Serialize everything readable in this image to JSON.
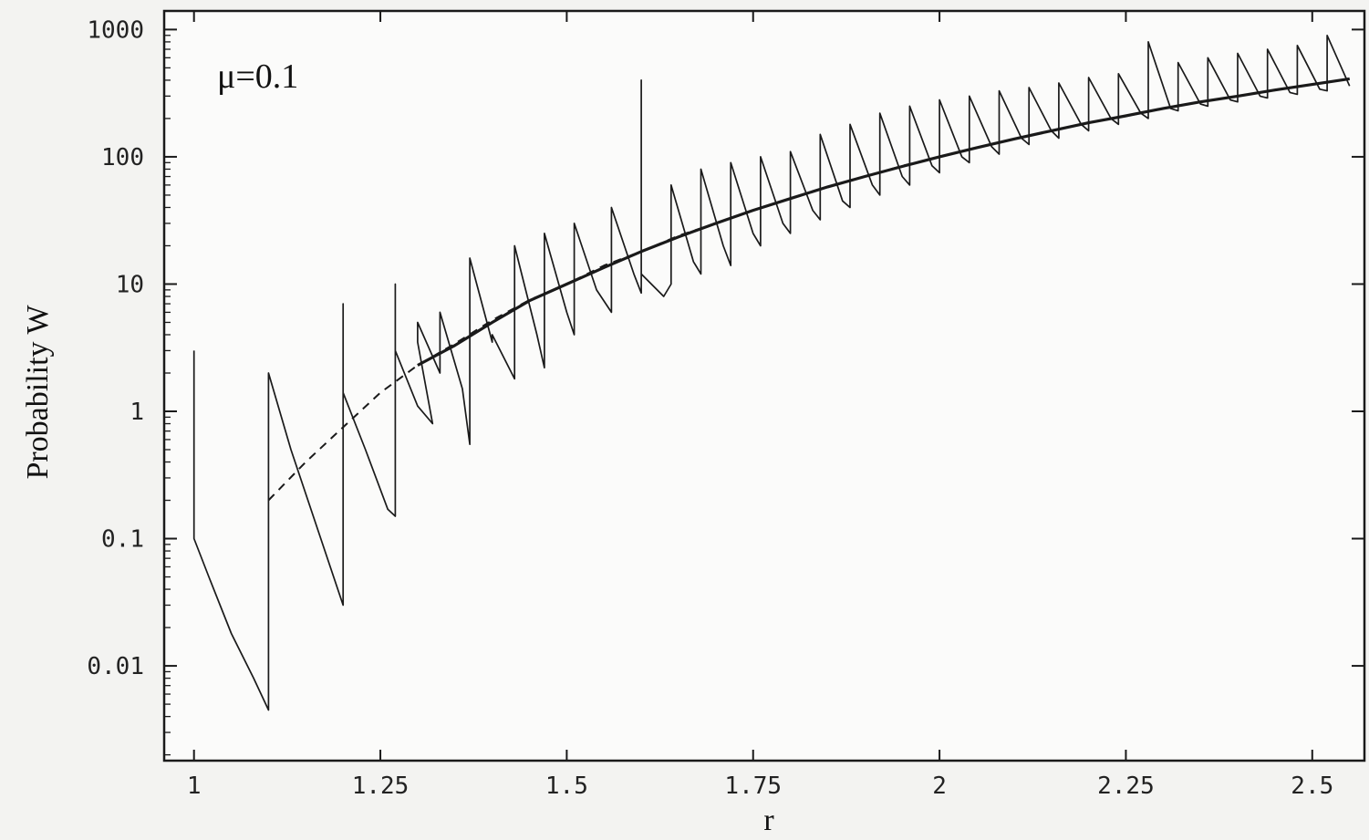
{
  "chart_data": {
    "type": "line",
    "title": "",
    "annotation": "μ=0.1",
    "xlabel": "r",
    "ylabel": "Probability W",
    "x_ticks": [
      {
        "value": 1,
        "label": "1"
      },
      {
        "value": 1.25,
        "label": "1.25"
      },
      {
        "value": 1.5,
        "label": "1.5"
      },
      {
        "value": 1.75,
        "label": "1.75"
      },
      {
        "value": 2,
        "label": "2"
      },
      {
        "value": 2.25,
        "label": "2.25"
      },
      {
        "value": 2.5,
        "label": "2.5"
      }
    ],
    "y_ticks": [
      {
        "value": 0.01,
        "label": "0.01"
      },
      {
        "value": 0.1,
        "label": "0.1"
      },
      {
        "value": 1,
        "label": "1"
      },
      {
        "value": 10,
        "label": "10"
      },
      {
        "value": 100,
        "label": "100"
      },
      {
        "value": 1000,
        "label": "1000"
      }
    ],
    "xlim": [
      0.96,
      2.57
    ],
    "ylim": [
      0.0018,
      1400
    ],
    "yscale": "log",
    "grid": false,
    "series": [
      {
        "style": "solid-oscillating",
        "color": "#1a1a1a",
        "points": [
          [
            1.0,
            3.0
          ],
          [
            1.0,
            0.1
          ],
          [
            1.02,
            0.05
          ],
          [
            1.05,
            0.018
          ],
          [
            1.08,
            0.008
          ],
          [
            1.1,
            0.0045
          ],
          [
            1.1,
            2.0
          ],
          [
            1.13,
            0.5
          ],
          [
            1.17,
            0.1
          ],
          [
            1.2,
            0.03
          ],
          [
            1.2,
            1.5
          ],
          [
            1.2,
            1.2
          ],
          [
            1.2,
            7.0
          ],
          [
            1.2,
            1.4
          ],
          [
            1.23,
            0.5
          ],
          [
            1.26,
            0.17
          ],
          [
            1.27,
            0.15
          ],
          [
            1.27,
            3.0
          ],
          [
            1.27,
            10.0
          ],
          [
            1.27,
            3.0
          ],
          [
            1.3,
            1.1
          ],
          [
            1.32,
            0.8
          ],
          [
            1.3,
            3.5
          ],
          [
            1.3,
            5.0
          ],
          [
            1.33,
            2.0
          ],
          [
            1.33,
            6.0
          ],
          [
            1.36,
            1.5
          ],
          [
            1.37,
            0.55
          ],
          [
            1.37,
            16.0
          ],
          [
            1.4,
            3.5
          ],
          [
            1.4,
            4.0
          ],
          [
            1.43,
            1.8
          ],
          [
            1.43,
            20.0
          ],
          [
            1.46,
            4.0
          ],
          [
            1.47,
            2.2
          ],
          [
            1.47,
            25.0
          ],
          [
            1.5,
            6.0
          ],
          [
            1.51,
            4.0
          ],
          [
            1.51,
            30.0
          ],
          [
            1.54,
            9.0
          ],
          [
            1.56,
            6.0
          ],
          [
            1.56,
            40.0
          ],
          [
            1.59,
            12.0
          ],
          [
            1.6,
            8.5
          ],
          [
            1.6,
            400.0
          ],
          [
            1.6,
            12.0
          ],
          [
            1.63,
            8.0
          ],
          [
            1.64,
            10.0
          ],
          [
            1.64,
            60.0
          ],
          [
            1.67,
            15.0
          ],
          [
            1.68,
            12.0
          ],
          [
            1.68,
            80.0
          ],
          [
            1.71,
            20.0
          ],
          [
            1.72,
            14.0
          ],
          [
            1.72,
            90.0
          ],
          [
            1.75,
            25.0
          ],
          [
            1.76,
            20.0
          ],
          [
            1.76,
            100.0
          ],
          [
            1.79,
            30.0
          ],
          [
            1.8,
            25.0
          ],
          [
            1.8,
            110.0
          ],
          [
            1.83,
            38.0
          ],
          [
            1.84,
            32.0
          ],
          [
            1.84,
            150.0
          ],
          [
            1.87,
            45.0
          ],
          [
            1.88,
            40.0
          ],
          [
            1.88,
            180.0
          ],
          [
            1.91,
            60.0
          ],
          [
            1.92,
            50.0
          ],
          [
            1.92,
            220.0
          ],
          [
            1.95,
            70.0
          ],
          [
            1.96,
            60.0
          ],
          [
            1.96,
            250.0
          ],
          [
            1.99,
            85.0
          ],
          [
            2.0,
            75.0
          ],
          [
            2.0,
            280.0
          ],
          [
            2.03,
            100.0
          ],
          [
            2.04,
            90.0
          ],
          [
            2.04,
            300.0
          ],
          [
            2.07,
            120.0
          ],
          [
            2.08,
            105.0
          ],
          [
            2.08,
            330.0
          ],
          [
            2.11,
            140.0
          ],
          [
            2.12,
            125.0
          ],
          [
            2.12,
            350.0
          ],
          [
            2.15,
            160.0
          ],
          [
            2.16,
            140.0
          ],
          [
            2.16,
            380.0
          ],
          [
            2.19,
            180.0
          ],
          [
            2.2,
            160.0
          ],
          [
            2.2,
            420.0
          ],
          [
            2.23,
            200.0
          ],
          [
            2.24,
            180.0
          ],
          [
            2.24,
            450.0
          ],
          [
            2.27,
            220.0
          ],
          [
            2.28,
            200.0
          ],
          [
            2.28,
            800.0
          ],
          [
            2.31,
            240.0
          ],
          [
            2.32,
            230.0
          ],
          [
            2.32,
            550.0
          ],
          [
            2.35,
            260.0
          ],
          [
            2.36,
            250.0
          ],
          [
            2.36,
            600.0
          ],
          [
            2.39,
            280.0
          ],
          [
            2.4,
            270.0
          ],
          [
            2.4,
            650.0
          ],
          [
            2.43,
            300.0
          ],
          [
            2.44,
            290.0
          ],
          [
            2.44,
            700.0
          ],
          [
            2.47,
            320.0
          ],
          [
            2.48,
            310.0
          ],
          [
            2.48,
            750.0
          ],
          [
            2.51,
            340.0
          ],
          [
            2.52,
            330.0
          ],
          [
            2.52,
            900.0
          ],
          [
            2.55,
            360.0
          ]
        ]
      },
      {
        "style": "dashed",
        "color": "#1a1a1a",
        "points": [
          [
            1.1,
            0.2
          ],
          [
            1.15,
            0.4
          ],
          [
            1.2,
            0.75
          ],
          [
            1.25,
            1.4
          ],
          [
            1.3,
            2.3
          ],
          [
            1.35,
            3.4
          ],
          [
            1.4,
            5.2
          ],
          [
            1.45,
            7.5
          ],
          [
            1.5,
            10.0
          ],
          [
            1.55,
            14.0
          ],
          [
            1.6,
            18.0
          ],
          [
            1.65,
            24.0
          ],
          [
            1.7,
            30.0
          ],
          [
            1.75,
            38.0
          ],
          [
            1.8,
            47.0
          ],
          [
            1.85,
            58.0
          ],
          [
            1.9,
            70.0
          ],
          [
            1.95,
            85.0
          ],
          [
            2.0,
            100.0
          ],
          [
            2.05,
            118.0
          ],
          [
            2.1,
            138.0
          ],
          [
            2.15,
            160.0
          ],
          [
            2.2,
            185.0
          ],
          [
            2.25,
            210.0
          ],
          [
            2.3,
            240.0
          ],
          [
            2.35,
            270.0
          ],
          [
            2.4,
            300.0
          ],
          [
            2.45,
            335.0
          ],
          [
            2.5,
            370.0
          ],
          [
            2.55,
            410.0
          ]
        ]
      },
      {
        "style": "solid-smooth",
        "color": "#1a1a1a",
        "points": [
          [
            1.3,
            2.3
          ],
          [
            1.35,
            3.3
          ],
          [
            1.4,
            5.0
          ],
          [
            1.45,
            7.4
          ],
          [
            1.5,
            10.0
          ],
          [
            1.55,
            13.5
          ],
          [
            1.6,
            18.0
          ],
          [
            1.65,
            23.5
          ],
          [
            1.7,
            30.0
          ],
          [
            1.75,
            38.0
          ],
          [
            1.8,
            47.0
          ],
          [
            1.85,
            58.0
          ],
          [
            1.9,
            70.0
          ],
          [
            1.95,
            84.0
          ],
          [
            2.0,
            100.0
          ],
          [
            2.05,
            118.0
          ],
          [
            2.1,
            138.0
          ],
          [
            2.15,
            160.0
          ],
          [
            2.2,
            185.0
          ],
          [
            2.25,
            210.0
          ],
          [
            2.3,
            240.0
          ],
          [
            2.35,
            270.0
          ],
          [
            2.4,
            300.0
          ],
          [
            2.45,
            335.0
          ],
          [
            2.5,
            370.0
          ],
          [
            2.55,
            410.0
          ]
        ]
      }
    ]
  }
}
